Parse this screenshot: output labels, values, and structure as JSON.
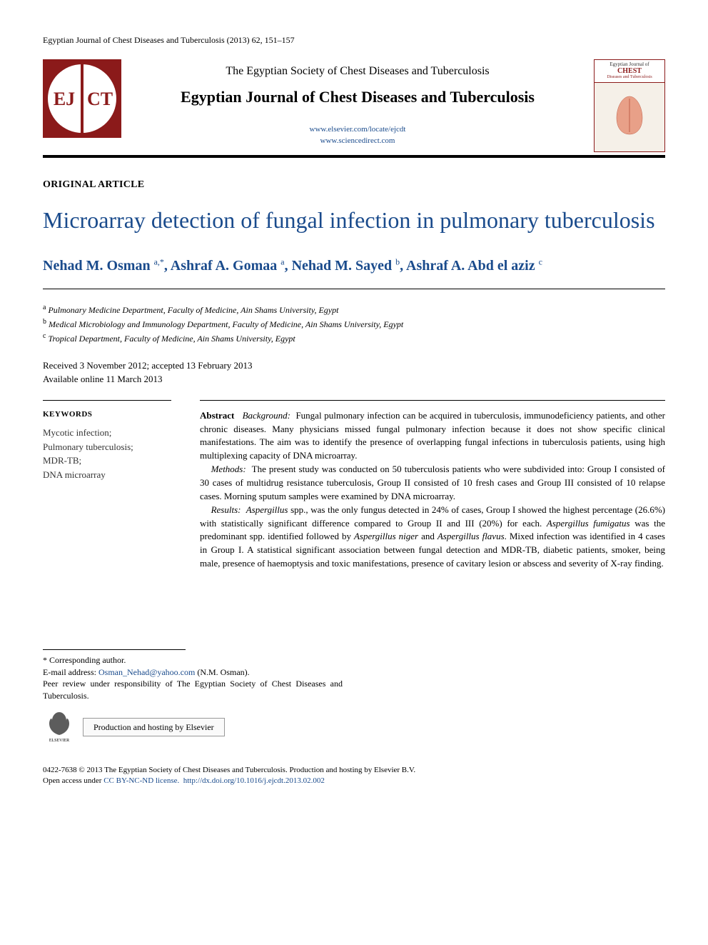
{
  "running_head": "Egyptian Journal of Chest Diseases and Tuberculosis (2013) 62, 151–157",
  "header": {
    "society": "The Egyptian Society of Chest Diseases and Tuberculosis",
    "journal": "Egyptian Journal of Chest Diseases and Tuberculosis",
    "link1": "www.elsevier.com/locate/ejcdt",
    "link2": "www.sciencedirect.com",
    "logo": {
      "left_text": "EJ",
      "right_text": "CT",
      "bg_color": "#8b1a1a",
      "circle_color": "#ffffff",
      "text_color": "#8b1a1a"
    },
    "cover": {
      "title_line1": "CHEST",
      "title_line2": "Diseases and Tuberculosis"
    }
  },
  "article_type": "ORIGINAL ARTICLE",
  "title": "Microarray detection of fungal infection in pulmonary tuberculosis",
  "authors_html": "Nehad M. Osman <sup>a,*</sup>, Ashraf A. Gomaa <sup>a</sup>, Nehad M. Sayed <sup>b</sup>, Ashraf A. Abd el aziz <sup>c</sup>",
  "affiliations": [
    {
      "sup": "a",
      "text": "Pulmonary Medicine Department, Faculty of Medicine, Ain Shams University, Egypt"
    },
    {
      "sup": "b",
      "text": "Medical Microbiology and Immunology Department, Faculty of Medicine, Ain Shams University, Egypt"
    },
    {
      "sup": "c",
      "text": "Tropical Department, Faculty of Medicine, Ain Shams University, Egypt"
    }
  ],
  "dates": {
    "line1": "Received 3 November 2012; accepted 13 February 2013",
    "line2": "Available online 11 March 2013"
  },
  "keywords": {
    "heading": "KEYWORDS",
    "items": "Mycotic infection;\nPulmonary tuberculosis;\nMDR-TB;\nDNA microarray"
  },
  "abstract": {
    "lead": "Abstract",
    "background_label": "Background:",
    "background": "Fungal pulmonary infection can be acquired in tuberculosis, immunodeficiency patients, and other chronic diseases. Many physicians missed fungal pulmonary infection because it does not show specific clinical manifestations. The aim was to identify the presence of overlapping fungal infections in tuberculosis patients, using high multiplexing capacity of DNA microarray.",
    "methods_label": "Methods:",
    "methods": "The present study was conducted on 50 tuberculosis patients who were subdivided into: Group I consisted of 30 cases of multidrug resistance tuberculosis, Group II consisted of 10 fresh cases and Group III consisted of 10 relapse cases. Morning sputum samples were examined by DNA microarray.",
    "results_label": "Results:",
    "results_pre_italic": "",
    "results": "Aspergillus spp., was the only fungus detected in 24% of cases, Group I showed the highest percentage (26.6%) with statistically significant difference compared to Group II and III (20%) for each. Aspergillus fumigatus was the predominant spp. identified followed by Aspergillus niger and Aspergillus flavus. Mixed infection was identified in 4 cases in Group I. A statistical significant association between fungal detection and MDR-TB, diabetic patients, smoker, being male, presence of haemoptysis and toxic manifestations, presence of cavitary lesion or abscess and severity of X-ray finding."
  },
  "footnotes": {
    "corr": "* Corresponding author.",
    "email_label": "E-mail address:",
    "email": "Osman_Nehad@yahoo.com",
    "email_attr": "(N.M. Osman).",
    "peer": "Peer review under responsibility of The Egyptian Society of Chest Diseases and Tuberculosis.",
    "hosting": "Production and hosting by Elsevier",
    "elsevier": "ELSEVIER"
  },
  "copyright": {
    "line1": "0422-7638 © 2013 The Egyptian Society of Chest Diseases and Tuberculosis. Production and hosting by Elsevier B.V.",
    "line2_a": "Open access under ",
    "license": "CC BY-NC-ND license.",
    "doi": "http://dx.doi.org/10.1016/j.ejcdt.2013.02.002"
  },
  "colors": {
    "link_color": "#1a4b8c",
    "rule_color": "#000000",
    "brand_red": "#8b1a1a"
  }
}
